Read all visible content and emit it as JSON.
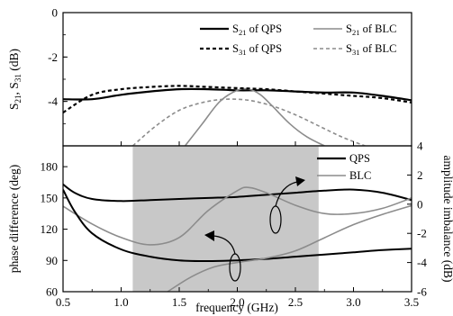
{
  "chart_data": [
    {
      "type": "line",
      "ylabel": "S21, S31 (dB)",
      "ylabel_main": "S",
      "ylabel_sub1": "21",
      "ylabel_mid": ", S",
      "ylabel_sub2": "31",
      "ylabel_unit": " (dB)",
      "ylim": [
        -6,
        0
      ],
      "yticks": [
        0,
        -2,
        -4
      ],
      "ytick_labels": [
        "0",
        "-2",
        "-4"
      ],
      "legend_position": "top-right",
      "series": [
        {
          "name": "S21 of QPS",
          "legend_main": "S",
          "legend_sub": "21",
          "legend_rest": " of QPS",
          "color": "#000000",
          "style": "solid",
          "x": [
            0.5,
            0.75,
            1.0,
            1.25,
            1.5,
            1.75,
            2.0,
            2.25,
            2.5,
            2.75,
            3.0,
            3.25,
            3.5
          ],
          "y": [
            -3.9,
            -3.9,
            -3.7,
            -3.55,
            -3.45,
            -3.45,
            -3.5,
            -3.5,
            -3.55,
            -3.6,
            -3.6,
            -3.75,
            -3.95
          ]
        },
        {
          "name": "S21 of BLC",
          "legend_main": "S",
          "legend_sub": "21",
          "legend_rest": " of BLC",
          "color": "#8c8c8c",
          "style": "solid",
          "x": [
            1.55,
            1.7,
            1.85,
            2.0,
            2.1,
            2.2,
            2.3,
            2.45,
            2.6,
            2.75
          ],
          "y": [
            -6.0,
            -5.0,
            -4.0,
            -3.5,
            -3.45,
            -3.7,
            -4.2,
            -5.0,
            -5.6,
            -6.0
          ]
        },
        {
          "name": "S31 of QPS",
          "legend_main": "S",
          "legend_sub": "31",
          "legend_rest": " of QPS",
          "color": "#000000",
          "style": "dashed",
          "x": [
            0.5,
            0.75,
            1.0,
            1.25,
            1.5,
            1.75,
            2.0,
            2.25,
            2.5,
            2.75,
            3.0,
            3.25,
            3.5
          ],
          "y": [
            -4.5,
            -3.7,
            -3.45,
            -3.35,
            -3.3,
            -3.35,
            -3.4,
            -3.45,
            -3.55,
            -3.65,
            -3.75,
            -3.85,
            -4.05
          ]
        },
        {
          "name": "S31 of BLC",
          "legend_main": "S",
          "legend_sub": "31",
          "legend_rest": " of BLC",
          "color": "#8c8c8c",
          "style": "dashed",
          "x": [
            1.1,
            1.3,
            1.5,
            1.7,
            1.9,
            2.1,
            2.3,
            2.5,
            2.7,
            2.9,
            3.1
          ],
          "y": [
            -6.0,
            -5.1,
            -4.4,
            -4.05,
            -3.9,
            -3.95,
            -4.2,
            -4.6,
            -5.1,
            -5.6,
            -6.0
          ]
        }
      ]
    },
    {
      "type": "line",
      "xlabel": "frequency (GHz)",
      "xlim": [
        0.5,
        3.5
      ],
      "xticks": [
        0.5,
        1.0,
        1.5,
        2.0,
        2.5,
        3.0,
        3.5
      ],
      "xtick_labels": [
        "0.5",
        "1.0",
        "1.5",
        "2.0",
        "2.5",
        "3.0",
        "3.5"
      ],
      "ylabel": "phase difference (deg)",
      "ylim": [
        60,
        200
      ],
      "yticks": [
        60,
        90,
        120,
        150,
        180
      ],
      "ytick_labels": [
        "60",
        "90",
        "120",
        "150",
        "180"
      ],
      "y2label": "amplitude imbalance (dB)",
      "y2lim": [
        -6,
        4
      ],
      "y2ticks": [
        -6,
        -4,
        -2,
        0,
        2,
        4
      ],
      "y2tick_labels": [
        "-6",
        "-4",
        "-2",
        "0",
        "2",
        "4"
      ],
      "shaded_region": {
        "x": [
          1.1,
          2.7
        ],
        "color": "#c8c8c8"
      },
      "legend_position": "top-right",
      "series": [
        {
          "name": "QPS",
          "axis": "left",
          "color": "#000000",
          "x": [
            0.5,
            0.6,
            0.75,
            1.0,
            1.25,
            1.5,
            1.75,
            2.0,
            2.25,
            2.5,
            2.75,
            3.0,
            3.25,
            3.5
          ],
          "y": [
            163,
            155,
            149,
            147,
            148,
            149,
            150,
            151,
            153,
            155,
            157,
            158,
            155,
            148
          ]
        },
        {
          "name": "BLC",
          "axis": "left",
          "color": "#8c8c8c",
          "x": [
            0.5,
            0.75,
            1.0,
            1.25,
            1.5,
            1.75,
            2.0,
            2.1,
            2.25,
            2.5,
            2.75,
            3.0,
            3.25,
            3.5
          ],
          "y": [
            142,
            125,
            112,
            105,
            112,
            138,
            157,
            160,
            155,
            143,
            135,
            135,
            140,
            150
          ]
        },
        {
          "name": "QPS",
          "axis": "right",
          "color": "#000000",
          "x": [
            0.5,
            0.6,
            0.75,
            1.0,
            1.25,
            1.5,
            1.75,
            2.0,
            2.25,
            2.5,
            2.75,
            3.0,
            3.25,
            3.5
          ],
          "y": [
            1.0,
            -0.5,
            -2.0,
            -3.1,
            -3.6,
            -3.85,
            -3.9,
            -3.85,
            -3.75,
            -3.6,
            -3.45,
            -3.3,
            -3.15,
            -3.05
          ]
        },
        {
          "name": "BLC",
          "axis": "right",
          "color": "#8c8c8c",
          "x": [
            1.4,
            1.6,
            1.8,
            2.0,
            2.25,
            2.5,
            2.75,
            3.0,
            3.25,
            3.5
          ],
          "y": [
            -6.0,
            -5.0,
            -4.3,
            -4.0,
            -3.7,
            -3.2,
            -2.3,
            -1.4,
            -0.7,
            -0.1
          ]
        }
      ]
    }
  ]
}
